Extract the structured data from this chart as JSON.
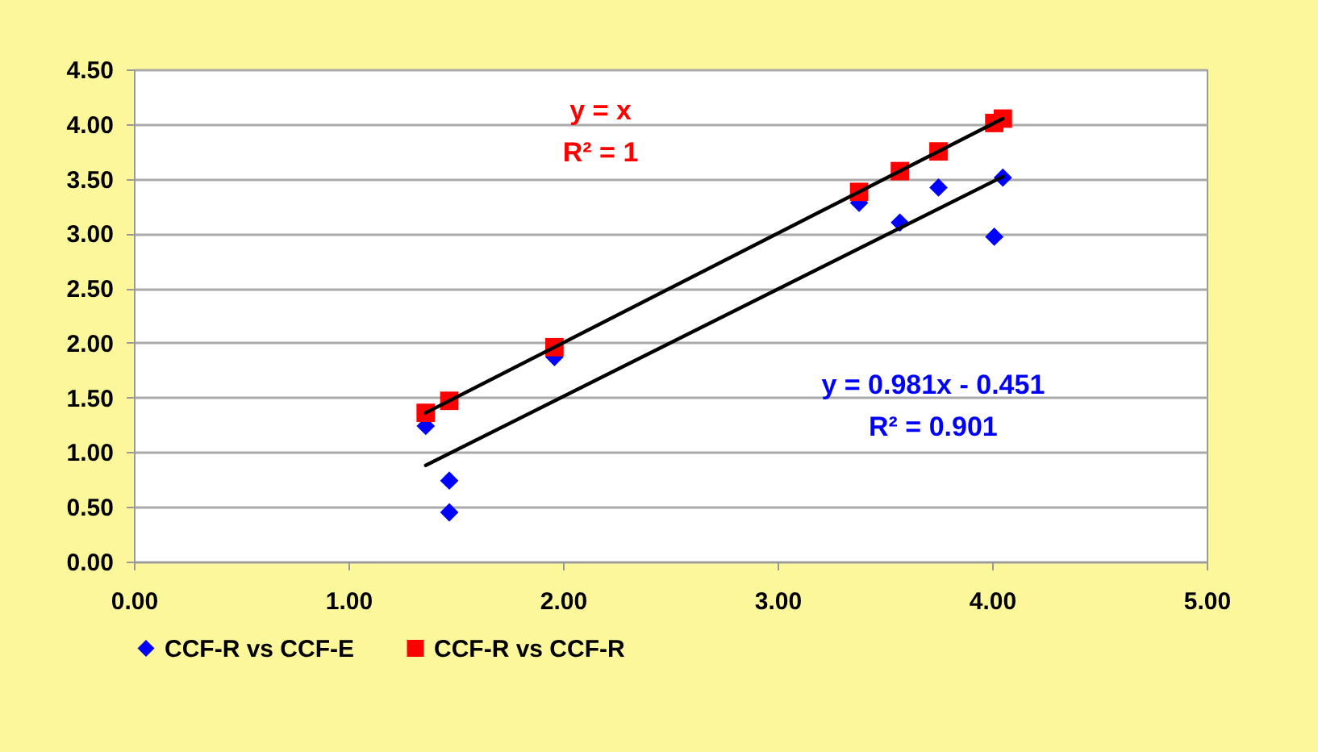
{
  "chart_data": {
    "type": "scatter",
    "series": [
      {
        "name": "CCF-R vs CCF-E",
        "color": "#0000ff",
        "marker": "diamond",
        "x": [
          1.36,
          1.47,
          1.47,
          1.96,
          3.38,
          3.57,
          3.75,
          4.01,
          4.05
        ],
        "values": [
          1.24,
          0.74,
          0.45,
          1.87,
          3.28,
          3.1,
          3.42,
          2.97,
          3.51
        ]
      },
      {
        "name": "CCF-R vs CCF-R",
        "color": "#ff0000",
        "marker": "square",
        "x": [
          1.36,
          1.47,
          1.96,
          3.38,
          3.57,
          3.75,
          4.01,
          4.05
        ],
        "values": [
          1.36,
          1.47,
          1.96,
          3.38,
          3.57,
          3.75,
          4.01,
          4.05
        ]
      },
      {
        "type": "line",
        "color": "#000000",
        "marker": "none",
        "x": [
          1.36,
          4.05
        ],
        "values": [
          1.36,
          4.05
        ]
      },
      {
        "type": "line",
        "color": "#000000",
        "marker": "none",
        "x": [
          1.36,
          4.05
        ],
        "values": [
          0.88,
          3.52
        ]
      }
    ],
    "annotations": [
      "y = x",
      "R² = 1",
      "y = 0.981x - 0.451",
      "R² = 0.901"
    ],
    "xlim": [
      0,
      5
    ],
    "xticks": [
      {
        "value": 0,
        "label": "0.00"
      },
      {
        "value": 1,
        "label": "1.00"
      },
      {
        "value": 2,
        "label": "2.00"
      },
      {
        "value": 3,
        "label": "3.00"
      },
      {
        "value": 4,
        "label": "4.00"
      },
      {
        "value": 5,
        "label": "5.00"
      }
    ],
    "ylim": [
      0,
      4.5
    ],
    "yticks": [
      {
        "value": 0,
        "label": "0.00"
      },
      {
        "value": 0.5,
        "label": "0.50"
      },
      {
        "value": 1,
        "label": "1.00"
      },
      {
        "value": 1.5,
        "label": "1.50"
      },
      {
        "value": 2,
        "label": "2.00"
      },
      {
        "value": 2.5,
        "label": "2.50"
      },
      {
        "value": 3,
        "label": "3.00"
      },
      {
        "value": 3.5,
        "label": "3.50"
      },
      {
        "value": 4,
        "label": "4.00"
      },
      {
        "value": 4.5,
        "label": "4.50"
      }
    ],
    "grid": "y",
    "legend": "bottom"
  }
}
